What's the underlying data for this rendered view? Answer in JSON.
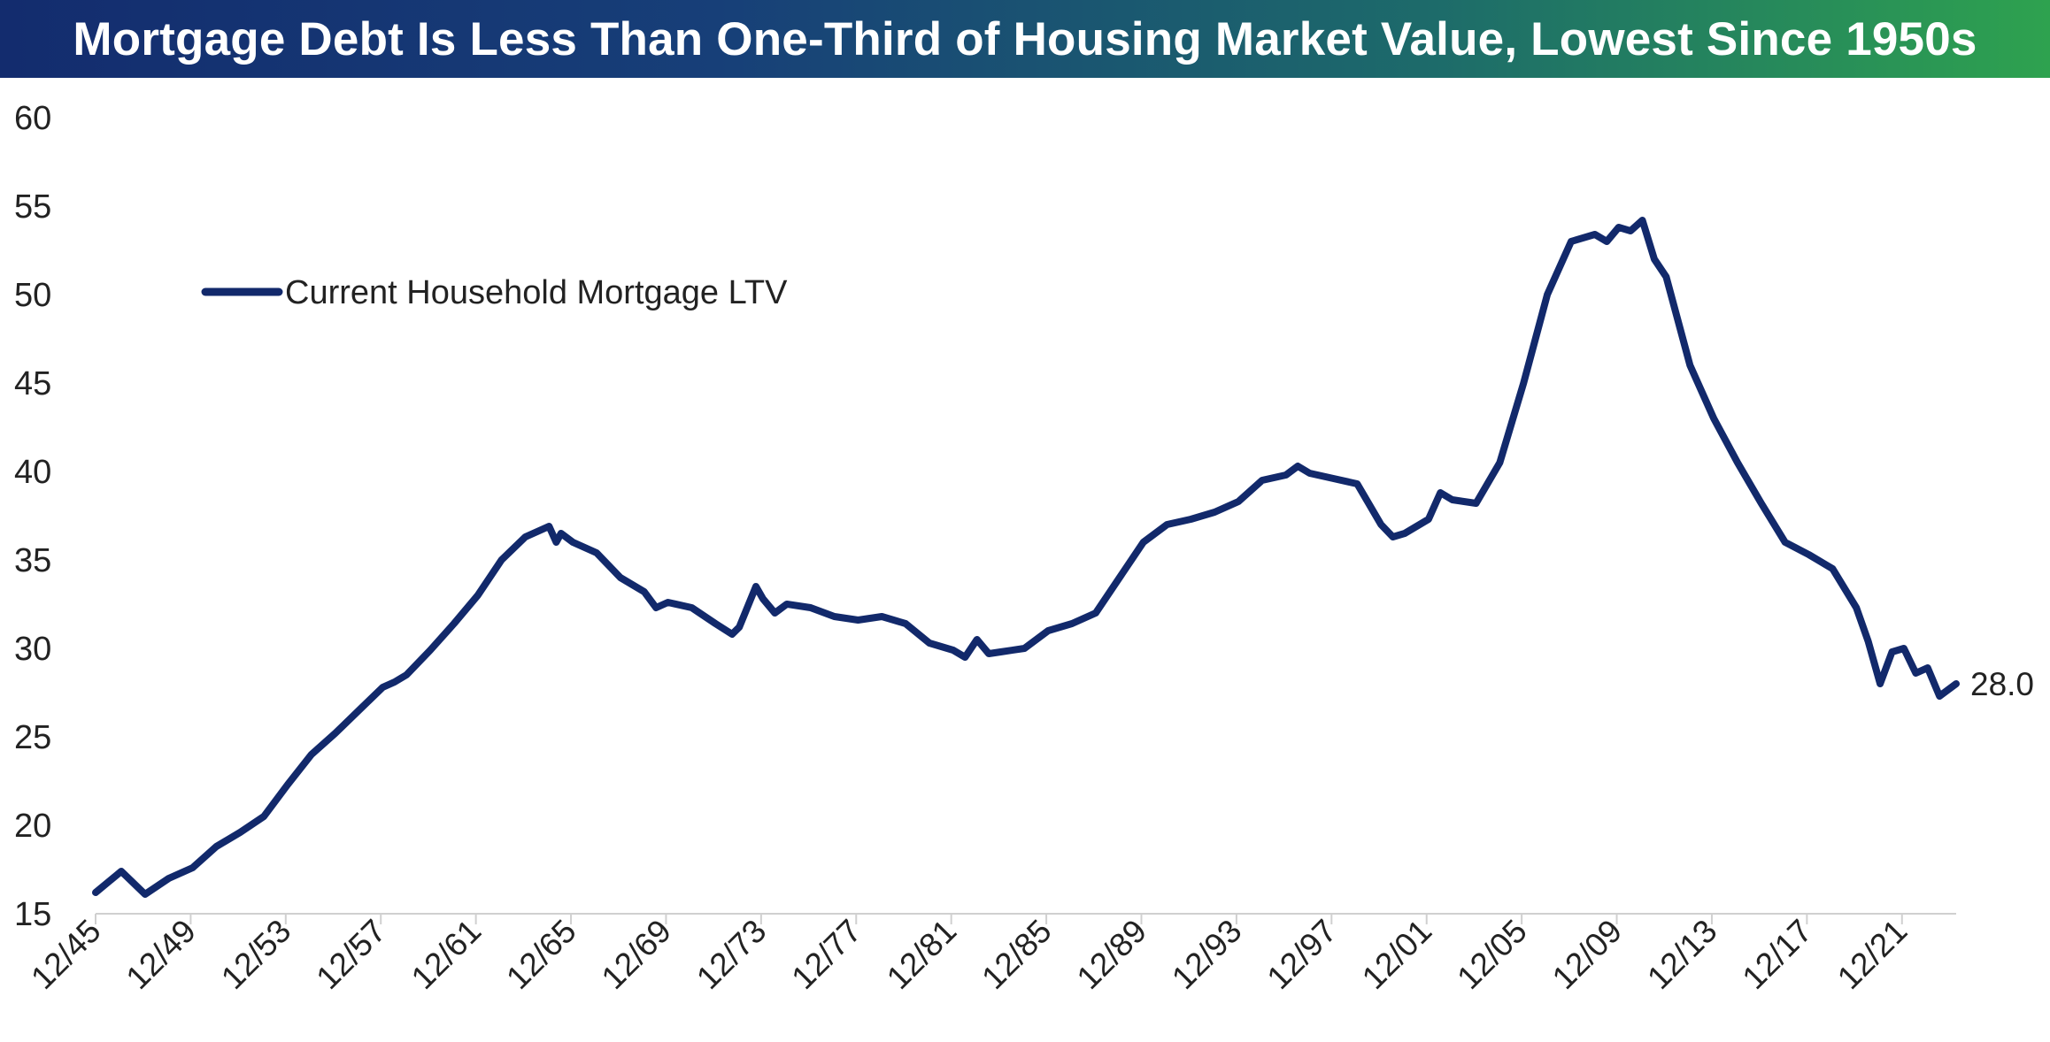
{
  "title": "Mortgage Debt Is Less Than One-Third of Housing Market Value, Lowest Since 1950s",
  "colors": {
    "line": "#12296b",
    "axis": "#d0d0d0",
    "text": "#222222"
  },
  "chart_data": {
    "type": "line",
    "title": "Mortgage Debt Is Less Than One-Third of Housing Market Value, Lowest Since 1950s",
    "xlabel": "",
    "ylabel": "",
    "ylim": [
      15,
      60
    ],
    "y_ticks": [
      15,
      20,
      25,
      30,
      35,
      40,
      45,
      50,
      55,
      60
    ],
    "x_range": [
      1945.92,
      2024.2
    ],
    "x_tick_labels": [
      "12/45",
      "12/49",
      "12/53",
      "12/57",
      "12/61",
      "12/65",
      "12/69",
      "12/73",
      "12/77",
      "12/81",
      "12/85",
      "12/89",
      "12/93",
      "12/97",
      "12/01",
      "12/05",
      "12/09",
      "12/13",
      "12/17",
      "12/21"
    ],
    "legend": {
      "label": "Current Household Mortgage LTV",
      "position": "top-left"
    },
    "end_label": "28.0",
    "series": [
      {
        "name": "Current Household Mortgage LTV",
        "x": [
          1945.92,
          1947,
          1948,
          1949,
          1950,
          1951,
          1952,
          1953,
          1954,
          1955,
          1956,
          1957,
          1958,
          1958.5,
          1959,
          1960,
          1961,
          1962,
          1963,
          1964,
          1965,
          1965.3,
          1965.5,
          1966,
          1967,
          1968,
          1969,
          1969.5,
          1970,
          1971,
          1972,
          1972.7,
          1973,
          1973.7,
          1974,
          1974.5,
          1975,
          1976,
          1977,
          1978,
          1979,
          1980,
          1981,
          1982,
          1982.5,
          1983,
          1983.5,
          1984,
          1985,
          1986,
          1987,
          1988,
          1989,
          1990,
          1991,
          1992,
          1993,
          1994,
          1995,
          1996,
          1996.5,
          1997,
          1998,
          1999,
          2000,
          2000.5,
          2001,
          2002,
          2002.5,
          2003,
          2004,
          2005,
          2006,
          2007,
          2008,
          2009,
          2009.5,
          2010,
          2010.5,
          2011,
          2011.5,
          2012,
          2013,
          2014,
          2015,
          2016,
          2017,
          2018,
          2019,
          2020,
          2020.5,
          2021,
          2021.5,
          2022,
          2022.5,
          2023,
          2023.5,
          2024.2
        ],
        "values": [
          16.2,
          17.4,
          16.1,
          17.0,
          17.6,
          18.8,
          19.6,
          20.5,
          22.3,
          24.0,
          25.2,
          26.5,
          27.8,
          28.1,
          28.5,
          29.9,
          31.4,
          33.0,
          35.0,
          36.3,
          36.9,
          36.0,
          36.5,
          36.0,
          35.4,
          34.0,
          33.2,
          32.3,
          32.6,
          32.3,
          31.4,
          30.8,
          31.2,
          33.5,
          32.8,
          32.0,
          32.5,
          32.3,
          31.8,
          31.6,
          31.8,
          31.4,
          30.3,
          29.9,
          29.5,
          30.5,
          29.7,
          29.8,
          30.0,
          31.0,
          31.4,
          32.0,
          34.0,
          36.0,
          37.0,
          37.3,
          37.7,
          38.3,
          39.5,
          39.8,
          40.3,
          39.9,
          39.6,
          39.3,
          37.0,
          36.3,
          36.5,
          37.3,
          38.8,
          38.4,
          38.2,
          40.5,
          45.0,
          50.0,
          53.0,
          53.4,
          53.0,
          53.8,
          53.6,
          54.2,
          52.0,
          51.0,
          46.0,
          43.0,
          40.5,
          38.2,
          36.0,
          35.3,
          34.5,
          32.3,
          30.4,
          28.0,
          29.8,
          30.0,
          28.6,
          28.9,
          27.3,
          28.0
        ]
      }
    ]
  }
}
